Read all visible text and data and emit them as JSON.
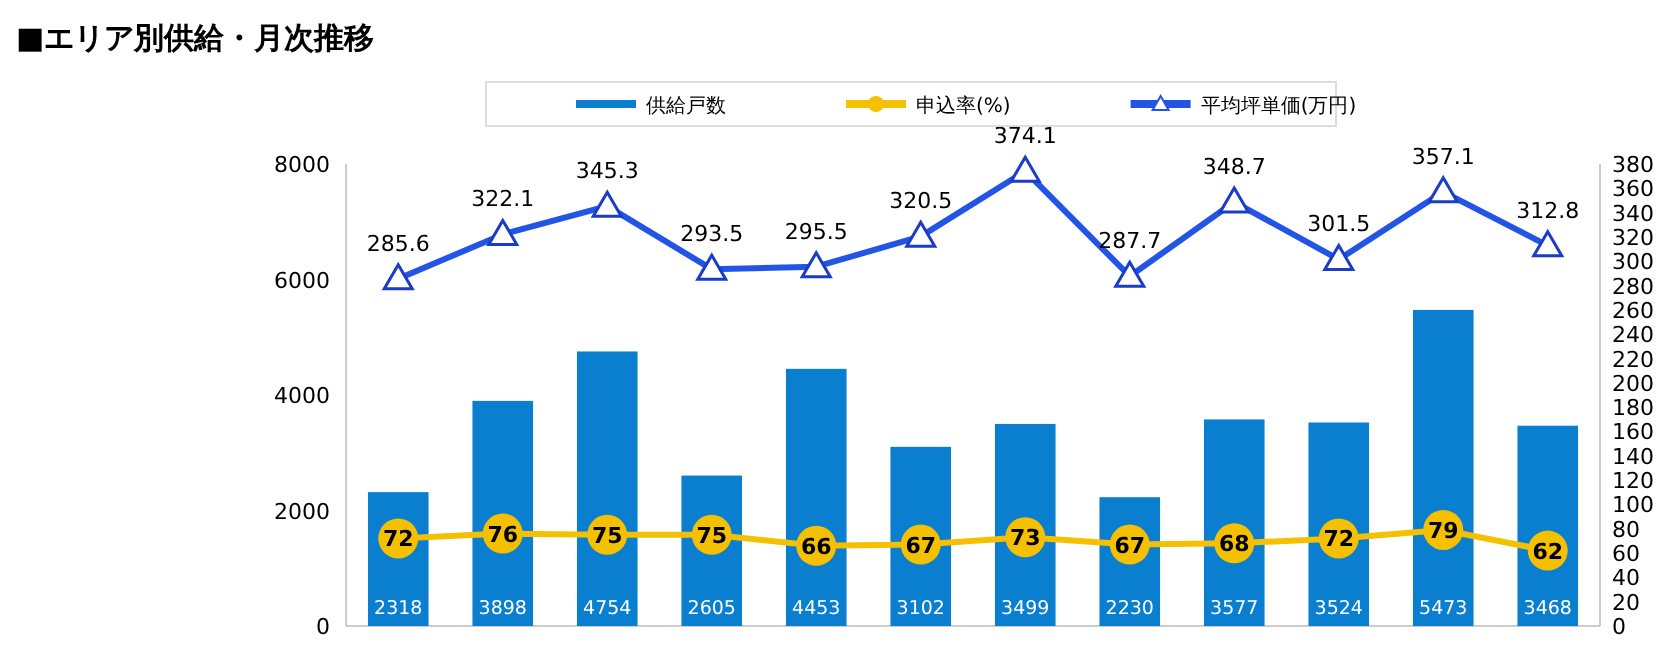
{
  "chart_data": {
    "type": "bar",
    "title": "■エリア別供給・月次推移",
    "categories": [
      null,
      null,
      null,
      null,
      null,
      null,
      null,
      null,
      null,
      null,
      null,
      null
    ],
    "series": [
      {
        "name": "供給戸数",
        "color": "#0a7fd0",
        "values": [
          2318,
          3898,
          4754,
          2605,
          4453,
          3102,
          3499,
          2230,
          3577,
          3524,
          5473,
          3468
        ]
      },
      {
        "name": "申込率(%)",
        "type": "line",
        "axis": "y2",
        "marker": "circle",
        "color": "#f5c000",
        "values": [
          72,
          76,
          75,
          75,
          66,
          67,
          73,
          67,
          68,
          72,
          79,
          62
        ]
      },
      {
        "name": "平均坪単価(万円)",
        "type": "line",
        "axis": "y2",
        "marker": "triangle",
        "color": "#2255e6",
        "values": [
          285.6,
          322.1,
          345.3,
          293.5,
          295.5,
          320.5,
          374.1,
          287.7,
          348.7,
          301.5,
          357.1,
          312.8
        ]
      }
    ],
    "ylim": [
      0,
      8000
    ],
    "yticks": [
      0,
      2000,
      4000,
      6000,
      8000
    ],
    "y2lim": [
      0,
      380
    ],
    "y2ticks": [
      0,
      20,
      40,
      60,
      80,
      100,
      120,
      140,
      160,
      180,
      200,
      220,
      240,
      260,
      280,
      300,
      320,
      340,
      360,
      380
    ],
    "data_labels": true,
    "legend": "top",
    "grid": false,
    "line_style": "solid"
  }
}
